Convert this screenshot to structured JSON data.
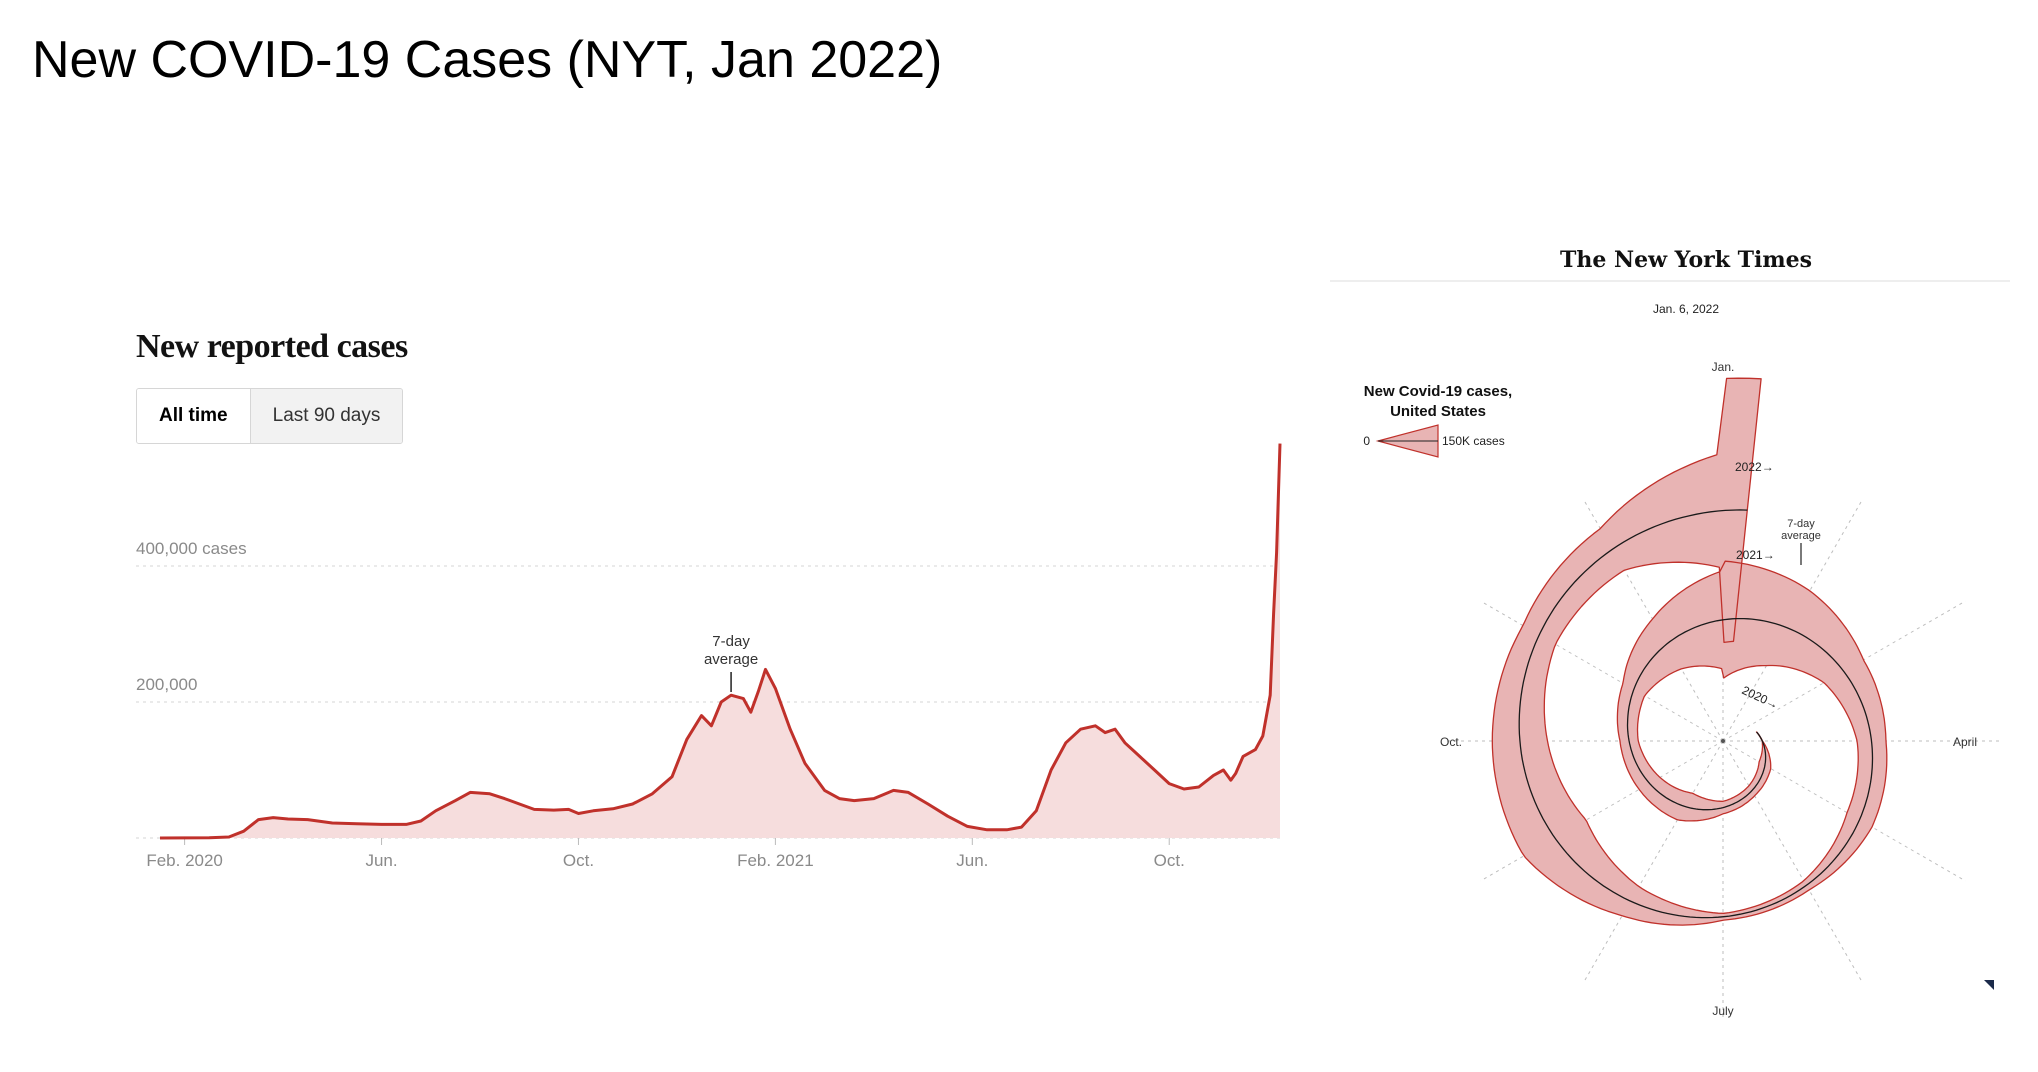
{
  "slide_title": "New COVID-19 Cases (NYT, Jan 2022)",
  "colors": {
    "line": "#c0312b",
    "fill": "#f6dddd",
    "grid": "#d4d4d4",
    "axis_text": "#8a8a8a",
    "spiral_fill": "#e8b4b4",
    "spiral_stroke": "#c0312b",
    "spiral_line": "#1a1a1a"
  },
  "left_chart": {
    "title": "New reported cases",
    "toggle": {
      "all_time": "All time",
      "last_90": "Last 90 days",
      "active": "All time"
    }
  },
  "right_chart": {
    "masthead": "The New York Times",
    "date": "Jan. 6, 2022",
    "legend_title_1": "New Covid-19 cases,",
    "legend_title_2": "United States",
    "legend_zero": "0",
    "legend_max": "150K cases",
    "avg_label_1": "7-day",
    "avg_label_2": "average",
    "months": {
      "jan": "Jan.",
      "april": "April",
      "july": "July",
      "oct": "Oct."
    },
    "years": [
      "2020→",
      "2021→",
      "2022→"
    ]
  },
  "chart_data": [
    {
      "type": "area",
      "title": "New reported cases",
      "series_name": "7-day average",
      "annotation": {
        "line1": "7-day",
        "line2": "average",
        "at_month": 11.6
      },
      "x_unit": "months since Jan 22, 2020",
      "ylim": [
        0,
        600000
      ],
      "y_ticks": [
        {
          "value": 400000,
          "label": "400,000 cases"
        },
        {
          "value": 200000,
          "label": "200,000"
        }
      ],
      "x_ticks": [
        {
          "m": 0.5,
          "label": "Feb. 2020"
        },
        {
          "m": 4.5,
          "label": "Jun."
        },
        {
          "m": 8.5,
          "label": "Oct."
        },
        {
          "m": 12.5,
          "label": "Feb. 2021"
        },
        {
          "m": 16.5,
          "label": "Jun."
        },
        {
          "m": 20.5,
          "label": "Oct."
        }
      ],
      "points": [
        [
          0,
          0
        ],
        [
          1,
          500
        ],
        [
          1.4,
          1500
        ],
        [
          1.7,
          10000
        ],
        [
          2.0,
          27000
        ],
        [
          2.3,
          30000
        ],
        [
          2.6,
          28000
        ],
        [
          3.0,
          27000
        ],
        [
          3.5,
          22000
        ],
        [
          4.0,
          21000
        ],
        [
          4.5,
          20000
        ],
        [
          5.0,
          20000
        ],
        [
          5.3,
          25000
        ],
        [
          5.6,
          40000
        ],
        [
          6.0,
          55000
        ],
        [
          6.3,
          67000
        ],
        [
          6.7,
          65000
        ],
        [
          7.0,
          58000
        ],
        [
          7.3,
          50000
        ],
        [
          7.6,
          42000
        ],
        [
          8.0,
          41000
        ],
        [
          8.3,
          42000
        ],
        [
          8.5,
          36000
        ],
        [
          8.8,
          40000
        ],
        [
          9.2,
          43000
        ],
        [
          9.6,
          50000
        ],
        [
          10.0,
          65000
        ],
        [
          10.4,
          90000
        ],
        [
          10.7,
          145000
        ],
        [
          11.0,
          180000
        ],
        [
          11.2,
          165000
        ],
        [
          11.4,
          200000
        ],
        [
          11.6,
          210000
        ],
        [
          11.85,
          205000
        ],
        [
          12.0,
          185000
        ],
        [
          12.15,
          215000
        ],
        [
          12.3,
          248000
        ],
        [
          12.5,
          220000
        ],
        [
          12.8,
          160000
        ],
        [
          13.1,
          110000
        ],
        [
          13.5,
          70000
        ],
        [
          13.8,
          58000
        ],
        [
          14.1,
          55000
        ],
        [
          14.5,
          58000
        ],
        [
          14.9,
          70000
        ],
        [
          15.2,
          67000
        ],
        [
          15.6,
          50000
        ],
        [
          16.0,
          32000
        ],
        [
          16.4,
          17000
        ],
        [
          16.8,
          12000
        ],
        [
          17.2,
          12000
        ],
        [
          17.5,
          16000
        ],
        [
          17.8,
          40000
        ],
        [
          18.1,
          100000
        ],
        [
          18.4,
          140000
        ],
        [
          18.7,
          160000
        ],
        [
          19.0,
          165000
        ],
        [
          19.2,
          155000
        ],
        [
          19.4,
          160000
        ],
        [
          19.6,
          140000
        ],
        [
          19.9,
          120000
        ],
        [
          20.2,
          100000
        ],
        [
          20.5,
          80000
        ],
        [
          20.8,
          72000
        ],
        [
          21.1,
          75000
        ],
        [
          21.4,
          92000
        ],
        [
          21.6,
          100000
        ],
        [
          21.75,
          85000
        ],
        [
          21.85,
          95000
        ],
        [
          22.0,
          120000
        ],
        [
          22.25,
          130000
        ],
        [
          22.4,
          150000
        ],
        [
          22.55,
          210000
        ],
        [
          22.62,
          330000
        ],
        [
          22.68,
          420000
        ],
        [
          22.75,
          580000
        ]
      ]
    },
    {
      "type": "spiral",
      "title": "New Covid-19 cases, United States",
      "unit": "cases (7-day average); legend width = 150K cases",
      "axes": [
        "Jan.",
        "April",
        "July",
        "Oct."
      ],
      "series": [
        {
          "year": 2020,
          "label": "2020→",
          "start_month": 2.5,
          "end_month": 12.0,
          "values_by_month": {
            "3": 500,
            "4": 28000,
            "5": 24000,
            "6": 26000,
            "7": 64000,
            "8": 50000,
            "9": 38000,
            "10": 52000,
            "11": 120000,
            "12": 205000
          }
        },
        {
          "year": 2021,
          "label": "2021→",
          "start_month": 0,
          "end_month": 12.0,
          "values_by_month": {
            "0": 245000,
            "1": 180000,
            "2": 95000,
            "3": 60000,
            "4": 60000,
            "5": 22000,
            "6": 14000,
            "7": 70000,
            "8": 150000,
            "9": 115000,
            "10": 78000,
            "11": 100000,
            "12": 240000
          }
        },
        {
          "year": 2022,
          "label": "2022→",
          "start_month": 0,
          "end_month": 0.2,
          "values_by_month": {
            "0": 550000
          }
        }
      ]
    }
  ]
}
